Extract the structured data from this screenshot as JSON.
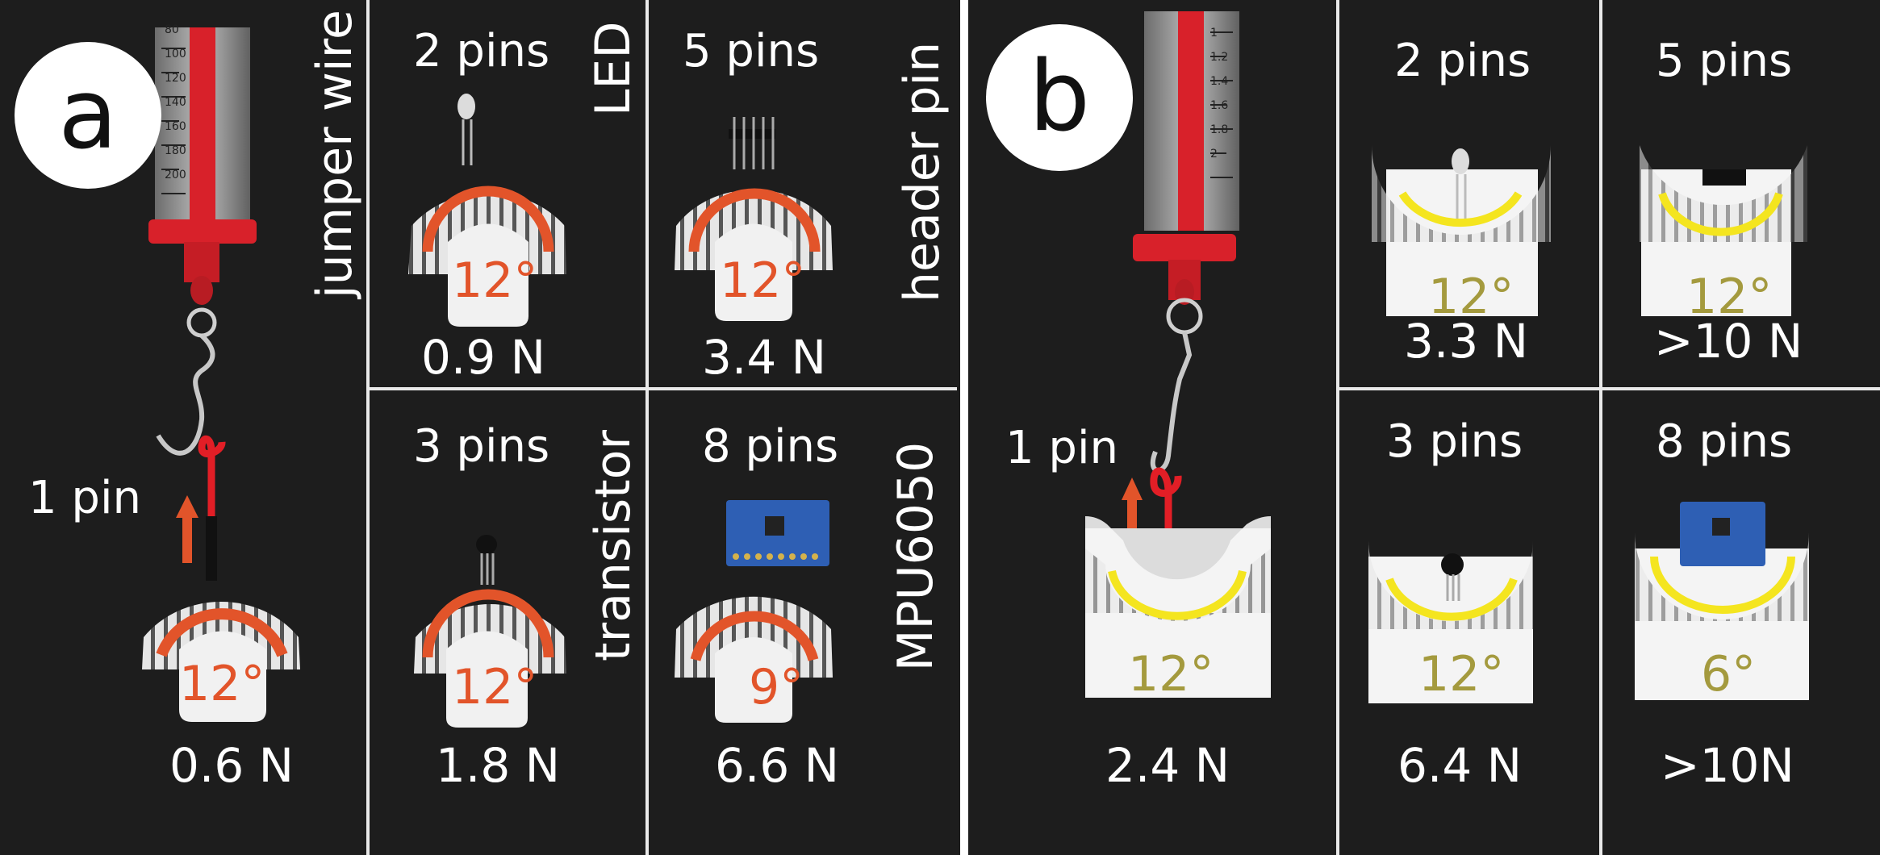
{
  "panel_a": {
    "label": "a",
    "single": {
      "pins": "1 pin",
      "wire": "jumper wire",
      "angle": "12°",
      "force": "0.6 N"
    },
    "cells": [
      {
        "pins": "2 pins",
        "component": "LED",
        "angle": "12°",
        "force": "0.9 N"
      },
      {
        "pins": "5 pins",
        "component": "header pin",
        "angle": "12°",
        "force": "3.4 N"
      },
      {
        "pins": "3 pins",
        "component": "transistor",
        "angle": "12°",
        "force": "1.8 N"
      },
      {
        "pins": "8 pins",
        "component": "MPU6050",
        "angle": "9°",
        "force": "6.6 N"
      }
    ]
  },
  "panel_b": {
    "label": "b",
    "single": {
      "pins": "1 pin",
      "angle": "12°",
      "force": "2.4 N"
    },
    "cells": [
      {
        "pins": "2 pins",
        "angle": "12°",
        "force": "3.3 N"
      },
      {
        "pins": "5 pins",
        "angle": "12°",
        "force": ">10 N"
      },
      {
        "pins": "3 pins",
        "angle": "12°",
        "force": "6.4 N"
      },
      {
        "pins": "8 pins",
        "angle": "6°",
        "force": ">10N"
      }
    ]
  },
  "gauge_scale_a": [
    "80",
    "100",
    "120",
    "140",
    "160",
    "180",
    "200"
  ],
  "gauge_scale_b": [
    "1",
    "1.2",
    "1.4",
    "1.6",
    "1.8",
    "2"
  ],
  "colors": {
    "background": "#1d1d1d",
    "orange_arc": "#e2542a",
    "yellow_arc": "#f4e51f",
    "olive_text": "#a49a3e",
    "gauge_red": "#d8212a"
  }
}
